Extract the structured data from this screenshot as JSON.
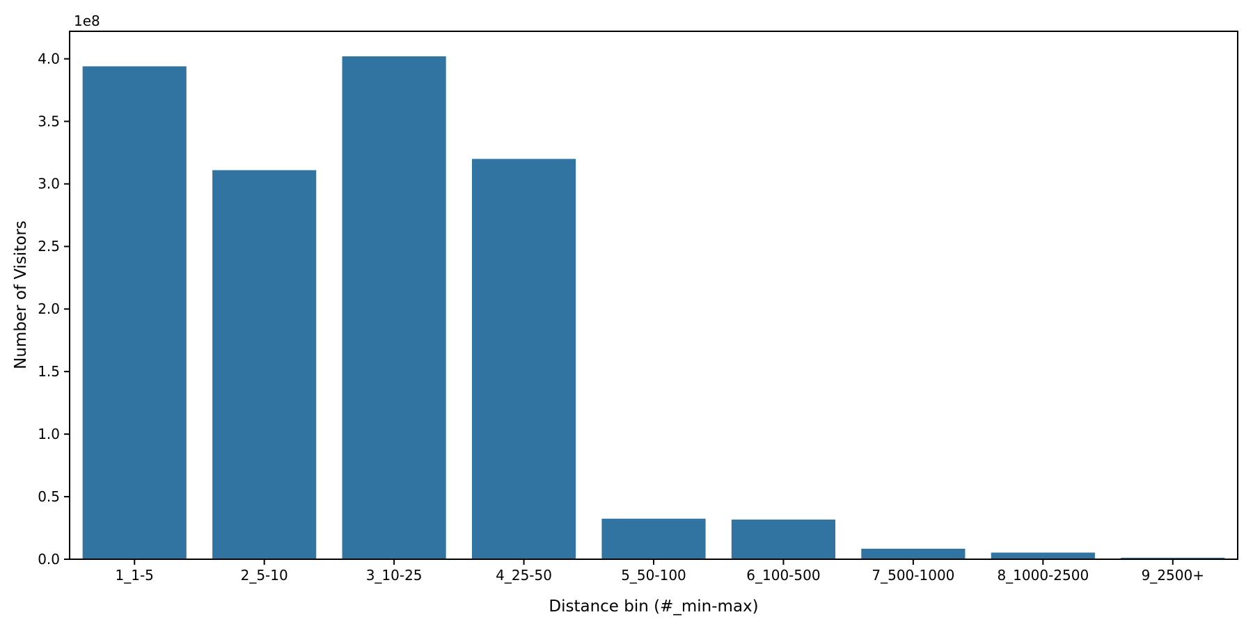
{
  "chart_data": {
    "type": "bar",
    "title": "",
    "xlabel": "Distance bin (#_min-max)",
    "ylabel": "Number of Visitors",
    "offset_text": "1e8",
    "categories": [
      "1_1-5",
      "2_5-10",
      "3_10-25",
      "4_25-50",
      "5_50-100",
      "6_100-500",
      "7_500-1000",
      "8_1000-2500",
      "9_2500+"
    ],
    "values": [
      394000000,
      311000000,
      402000000,
      320000000,
      32400000,
      31700000,
      8400000,
      5300000,
      1200000
    ],
    "ylim": [
      0,
      422000000
    ],
    "ytick_values": [
      0,
      50000000,
      100000000,
      150000000,
      200000000,
      250000000,
      300000000,
      350000000,
      400000000
    ],
    "ytick_labels": [
      "0.0",
      "0.5",
      "1.0",
      "1.5",
      "2.0",
      "2.5",
      "3.0",
      "3.5",
      "4.0"
    ],
    "bar_color": "#3274a1",
    "spine_color": "#000000",
    "tick_color": "#000000",
    "background_color": "#ffffff",
    "bar_width_fraction": 0.8,
    "grid": false,
    "legend_position": "none"
  }
}
